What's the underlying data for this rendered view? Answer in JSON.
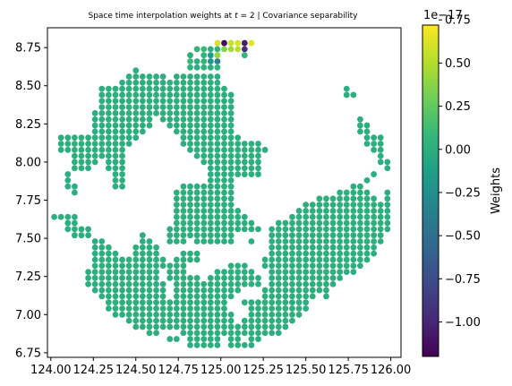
{
  "chart_data": {
    "type": "scatter",
    "title": "Space time interpolation weights at t = 2 | Covariance separability",
    "title_parts": {
      "prefix": "Space time interpolation weights at ",
      "var": "t",
      "suffix": " = 2 | Covariance separability"
    },
    "xlabel": "",
    "ylabel": "",
    "xlim": [
      123.98,
      126.06
    ],
    "ylim": [
      6.72,
      8.88
    ],
    "x_ticks": [
      124.0,
      124.25,
      124.5,
      124.75,
      125.0,
      125.25,
      125.5,
      125.75,
      126.0
    ],
    "x_tick_labels": [
      "124.00",
      "124.25",
      "124.50",
      "124.75",
      "125.00",
      "125.25",
      "125.50",
      "125.75",
      "126.00"
    ],
    "y_ticks": [
      6.75,
      7.0,
      7.25,
      7.5,
      7.75,
      8.0,
      8.25,
      8.5,
      8.75
    ],
    "y_tick_labels": [
      "6.75",
      "7.00",
      "7.25",
      "7.50",
      "7.75",
      "8.00",
      "8.25",
      "8.50",
      "8.75"
    ],
    "grid": false,
    "grid_spacing": 0.04,
    "base_value": 0,
    "base_mask_rows": [
      {
        "y": 8.6,
        "ranges": [
          [
            124.5,
            124.5
          ]
        ]
      },
      {
        "y": 8.56,
        "ranges": [
          [
            124.46,
            124.66
          ],
          [
            124.74,
            124.98
          ]
        ]
      },
      {
        "y": 8.52,
        "ranges": [
          [
            124.42,
            124.98
          ]
        ]
      },
      {
        "y": 8.48,
        "ranges": [
          [
            124.3,
            125.02
          ],
          [
            125.74,
            125.74
          ]
        ]
      },
      {
        "y": 8.44,
        "ranges": [
          [
            124.3,
            125.06
          ],
          [
            125.74,
            125.78
          ]
        ]
      },
      {
        "y": 8.4,
        "ranges": [
          [
            124.3,
            125.06
          ]
        ]
      },
      {
        "y": 8.36,
        "ranges": [
          [
            124.3,
            125.06
          ]
        ]
      },
      {
        "y": 8.32,
        "ranges": [
          [
            124.26,
            125.06
          ]
        ]
      },
      {
        "y": 8.28,
        "ranges": [
          [
            124.26,
            124.58
          ],
          [
            124.66,
            125.06
          ],
          [
            125.82,
            125.82
          ]
        ]
      },
      {
        "y": 8.24,
        "ranges": [
          [
            124.26,
            124.58
          ],
          [
            124.7,
            125.06
          ],
          [
            125.82,
            125.86
          ]
        ]
      },
      {
        "y": 8.2,
        "ranges": [
          [
            124.26,
            124.54
          ],
          [
            124.74,
            125.06
          ],
          [
            125.82,
            125.86
          ]
        ]
      },
      {
        "y": 8.16,
        "ranges": [
          [
            124.06,
            124.5
          ],
          [
            124.78,
            125.1
          ],
          [
            125.86,
            125.94
          ]
        ]
      },
      {
        "y": 8.12,
        "ranges": [
          [
            124.06,
            124.46
          ],
          [
            124.78,
            125.22
          ],
          [
            125.86,
            125.94
          ]
        ]
      },
      {
        "y": 8.08,
        "ranges": [
          [
            124.06,
            124.42
          ],
          [
            124.82,
            125.26
          ],
          [
            125.9,
            125.94
          ]
        ]
      },
      {
        "y": 8.04,
        "ranges": [
          [
            124.14,
            124.42
          ],
          [
            124.86,
            125.22
          ],
          [
            125.94,
            125.94
          ]
        ]
      },
      {
        "y": 8.0,
        "ranges": [
          [
            124.14,
            124.26
          ],
          [
            124.34,
            124.42
          ],
          [
            124.9,
            125.22
          ],
          [
            125.94,
            125.98
          ]
        ]
      },
      {
        "y": 7.96,
        "ranges": [
          [
            124.14,
            124.22
          ],
          [
            124.34,
            124.42
          ],
          [
            124.94,
            125.22
          ],
          [
            125.98,
            125.98
          ]
        ]
      },
      {
        "y": 7.92,
        "ranges": [
          [
            124.1,
            124.1
          ],
          [
            124.38,
            124.42
          ],
          [
            124.94,
            125.22
          ],
          [
            125.9,
            125.9
          ]
        ]
      },
      {
        "y": 7.88,
        "ranges": [
          [
            124.1,
            124.1
          ],
          [
            124.38,
            124.42
          ],
          [
            124.94,
            125.06
          ],
          [
            125.86,
            125.86
          ]
        ]
      },
      {
        "y": 7.84,
        "ranges": [
          [
            124.1,
            124.14
          ],
          [
            124.38,
            124.42
          ],
          [
            124.78,
            125.06
          ],
          [
            125.78,
            125.82
          ]
        ]
      },
      {
        "y": 7.8,
        "ranges": [
          [
            124.14,
            124.14
          ],
          [
            124.74,
            125.06
          ],
          [
            125.7,
            125.86
          ],
          [
            125.98,
            125.98
          ]
        ]
      },
      {
        "y": 7.76,
        "ranges": [
          [
            124.74,
            125.06
          ],
          [
            125.58,
            125.9
          ],
          [
            125.98,
            125.98
          ]
        ]
      },
      {
        "y": 7.72,
        "ranges": [
          [
            124.74,
            125.06
          ],
          [
            125.5,
            125.98
          ]
        ]
      },
      {
        "y": 7.68,
        "ranges": [
          [
            124.74,
            125.1
          ],
          [
            125.46,
            125.98
          ]
        ]
      },
      {
        "y": 7.64,
        "ranges": [
          [
            124.02,
            124.14
          ],
          [
            124.74,
            125.14
          ],
          [
            125.42,
            125.98
          ]
        ]
      },
      {
        "y": 7.6,
        "ranges": [
          [
            124.1,
            124.14
          ],
          [
            124.74,
            125.18
          ],
          [
            125.34,
            125.98
          ]
        ]
      },
      {
        "y": 7.56,
        "ranges": [
          [
            124.1,
            124.22
          ],
          [
            124.7,
            125.22
          ],
          [
            125.3,
            125.98
          ]
        ]
      },
      {
        "y": 7.52,
        "ranges": [
          [
            124.14,
            124.22
          ],
          [
            124.54,
            124.54
          ],
          [
            124.7,
            125.06
          ],
          [
            125.3,
            125.94
          ]
        ]
      },
      {
        "y": 7.48,
        "ranges": [
          [
            124.26,
            124.3
          ],
          [
            124.54,
            124.58
          ],
          [
            124.7,
            124.78
          ],
          [
            124.86,
            125.06
          ],
          [
            125.18,
            125.18
          ],
          [
            125.3,
            125.94
          ]
        ]
      },
      {
        "y": 7.44,
        "ranges": [
          [
            124.26,
            124.34
          ],
          [
            124.5,
            124.62
          ],
          [
            125.3,
            125.9
          ]
        ]
      },
      {
        "y": 7.4,
        "ranges": [
          [
            124.26,
            124.38
          ],
          [
            124.5,
            124.62
          ],
          [
            124.78,
            124.86
          ],
          [
            125.3,
            125.9
          ]
        ]
      },
      {
        "y": 7.36,
        "ranges": [
          [
            124.26,
            124.66
          ],
          [
            124.74,
            124.86
          ],
          [
            125.26,
            125.86
          ]
        ]
      },
      {
        "y": 7.32,
        "ranges": [
          [
            124.26,
            124.66
          ],
          [
            124.7,
            124.78
          ],
          [
            125.06,
            125.14
          ],
          [
            125.26,
            125.82
          ]
        ]
      },
      {
        "y": 7.28,
        "ranges": [
          [
            124.22,
            124.62
          ],
          [
            124.7,
            124.78
          ],
          [
            124.98,
            125.18
          ],
          [
            125.3,
            125.78
          ]
        ]
      },
      {
        "y": 7.24,
        "ranges": [
          [
            124.22,
            124.62
          ],
          [
            124.7,
            124.86
          ],
          [
            124.94,
            125.22
          ],
          [
            125.3,
            125.7
          ]
        ]
      },
      {
        "y": 7.2,
        "ranges": [
          [
            124.22,
            124.66
          ],
          [
            124.74,
            125.22
          ],
          [
            125.3,
            125.66
          ]
        ]
      },
      {
        "y": 7.16,
        "ranges": [
          [
            124.26,
            124.66
          ],
          [
            124.74,
            125.1
          ],
          [
            125.26,
            125.62
          ]
        ]
      },
      {
        "y": 7.12,
        "ranges": [
          [
            124.3,
            124.66
          ],
          [
            124.74,
            125.06
          ],
          [
            125.26,
            125.54
          ],
          [
            125.62,
            125.62
          ]
        ]
      },
      {
        "y": 7.08,
        "ranges": [
          [
            124.34,
            124.7
          ],
          [
            124.74,
            125.02
          ],
          [
            125.14,
            125.5
          ]
        ]
      },
      {
        "y": 7.04,
        "ranges": [
          [
            124.34,
            125.02
          ],
          [
            125.18,
            125.5
          ]
        ]
      },
      {
        "y": 7.0,
        "ranges": [
          [
            124.38,
            125.06
          ],
          [
            125.18,
            125.46
          ]
        ]
      },
      {
        "y": 6.96,
        "ranges": [
          [
            124.46,
            125.06
          ],
          [
            125.14,
            125.42
          ]
        ]
      },
      {
        "y": 6.92,
        "ranges": [
          [
            124.5,
            125.38
          ]
        ]
      },
      {
        "y": 6.88,
        "ranges": [
          [
            124.58,
            124.62
          ],
          [
            124.78,
            125.34
          ]
        ]
      },
      {
        "y": 6.84,
        "ranges": [
          [
            124.7,
            124.74
          ],
          [
            124.82,
            124.98
          ],
          [
            125.06,
            125.1
          ],
          [
            125.18,
            125.22
          ]
        ]
      },
      {
        "y": 6.8,
        "ranges": [
          [
            124.82,
            124.98
          ],
          [
            125.06,
            125.1
          ],
          [
            125.14,
            125.18
          ]
        ]
      }
    ],
    "special_points": [
      {
        "x": 124.98,
        "y": 8.78,
        "value": 0.6
      },
      {
        "x": 125.02,
        "y": 8.78,
        "value": -1.15
      },
      {
        "x": 125.06,
        "y": 8.78,
        "value": 0.55
      },
      {
        "x": 125.1,
        "y": 8.78,
        "value": 0.6
      },
      {
        "x": 125.14,
        "y": 8.78,
        "value": -1.05
      },
      {
        "x": 125.18,
        "y": 8.78,
        "value": 0.65
      },
      {
        "x": 124.86,
        "y": 8.74,
        "value": 0.05
      },
      {
        "x": 124.9,
        "y": 8.74,
        "value": 0.1
      },
      {
        "x": 124.94,
        "y": 8.74,
        "value": 0.0
      },
      {
        "x": 124.98,
        "y": 8.74,
        "value": 0.05
      },
      {
        "x": 125.02,
        "y": 8.74,
        "value": 0.35
      },
      {
        "x": 125.06,
        "y": 8.74,
        "value": 0.45
      },
      {
        "x": 125.1,
        "y": 8.74,
        "value": 0.5
      },
      {
        "x": 125.14,
        "y": 8.74,
        "value": -0.95
      },
      {
        "x": 124.82,
        "y": 8.7,
        "value": 0.0
      },
      {
        "x": 124.9,
        "y": 8.7,
        "value": 0.05
      },
      {
        "x": 124.94,
        "y": 8.7,
        "value": -0.15
      },
      {
        "x": 124.98,
        "y": 8.7,
        "value": 0.4
      },
      {
        "x": 125.14,
        "y": 8.7,
        "value": 0.05
      },
      {
        "x": 124.82,
        "y": 8.66,
        "value": 0.1
      },
      {
        "x": 124.86,
        "y": 8.66,
        "value": 0.0
      },
      {
        "x": 124.9,
        "y": 8.66,
        "value": 0.05
      },
      {
        "x": 124.94,
        "y": 8.66,
        "value": -0.2
      },
      {
        "x": 124.98,
        "y": 8.66,
        "value": -0.35
      },
      {
        "x": 124.82,
        "y": 8.62,
        "value": 0.05
      },
      {
        "x": 124.86,
        "y": 8.62,
        "value": 0.0
      },
      {
        "x": 124.9,
        "y": 8.62,
        "value": 0.05
      },
      {
        "x": 124.94,
        "y": 8.62,
        "value": 0.0
      },
      {
        "x": 124.98,
        "y": 8.62,
        "value": 0.05
      }
    ],
    "colorbar": {
      "label": "Weights",
      "min": -1.2,
      "max": 0.72,
      "ticks": [
        -1.0,
        -0.75,
        -0.5,
        -0.25,
        0.0,
        0.25,
        0.5,
        0.75
      ],
      "tick_labels": [
        "−1.00",
        "−0.75",
        "−0.50",
        "−0.25",
        "0.00",
        "0.25",
        "0.50",
        "0.75"
      ],
      "offset_label": "1e−17",
      "colormap": "viridis"
    }
  },
  "colors": {
    "viridis": [
      "#440154",
      "#482878",
      "#3e4989",
      "#31688e",
      "#26828e",
      "#1f9e89",
      "#35b779",
      "#6ece58",
      "#b5de2b",
      "#fde725"
    ],
    "axis": "#000000",
    "background": "#ffffff"
  }
}
